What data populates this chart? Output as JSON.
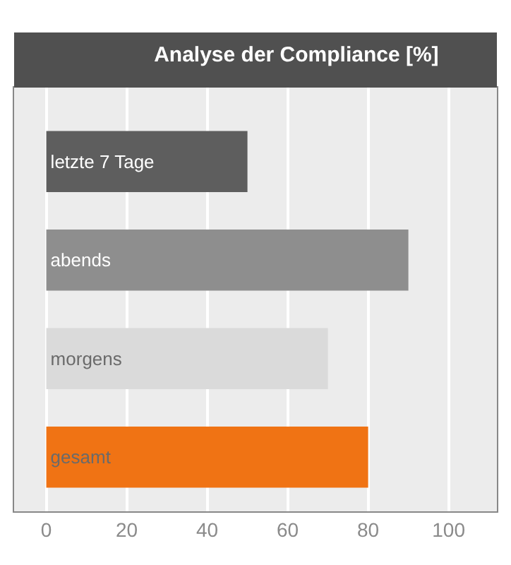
{
  "chart_data": {
    "type": "bar",
    "orientation": "horizontal",
    "title": "Analyse der Compliance [%]",
    "categories": [
      "letzte 7 Tage",
      "abends",
      "morgens",
      "gesamt"
    ],
    "values": [
      50,
      90,
      70,
      80
    ],
    "colors": [
      "#5e5e5e",
      "#8e8e8e",
      "#dadada",
      "#f07314"
    ],
    "xlim": [
      -8,
      112
    ],
    "xticks": [
      0,
      20,
      40,
      60,
      80,
      100
    ],
    "grid": "x",
    "tick_labels": "x",
    "legend": false
  }
}
